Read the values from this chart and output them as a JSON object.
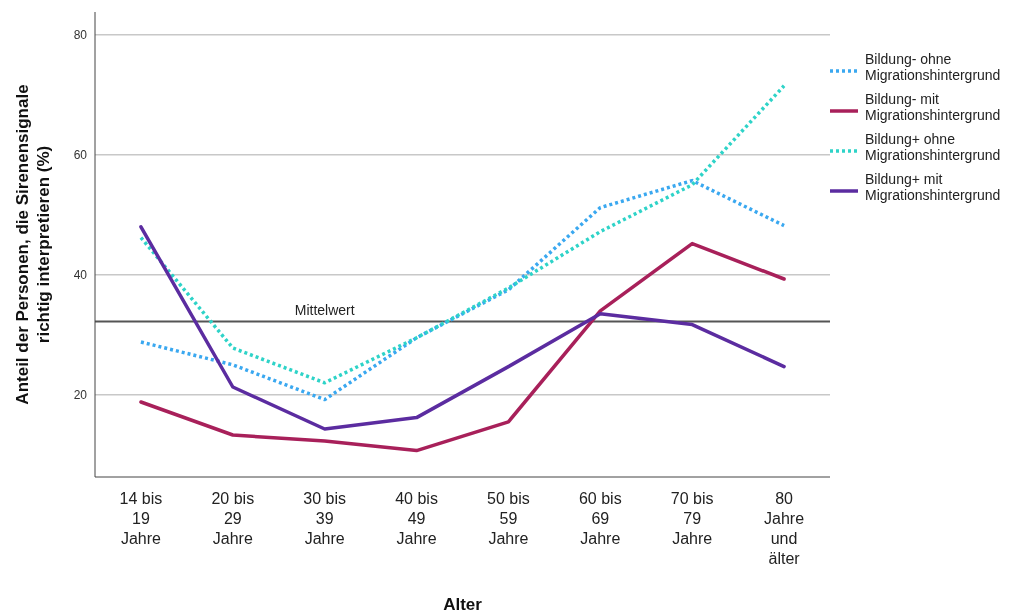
{
  "chart_data": {
    "type": "line",
    "xlabel": "Alter",
    "ylabel": "Anteil der Personen, die Sirenensignale richtig interpretieren (%)",
    "categories": [
      "14 bis 19 Jahre",
      "20 bis 29 Jahre",
      "30 bis 39 Jahre",
      "40 bis 49 Jahre",
      "50 bis 59 Jahre",
      "60 bis 69 Jahre",
      "70 bis 79 Jahre",
      "80 Jahre und älter"
    ],
    "series": [
      {
        "name": "Bildung- ohne Migrationshintergrund",
        "color": "#3aa8f0",
        "line_style": "dotted",
        "values": [
          28.8,
          25,
          19.2,
          29.5,
          37.5,
          51.2,
          55.7,
          48.2
        ]
      },
      {
        "name": "Bildung- mit Migrationshintergrund",
        "color": "#a8205a",
        "line_style": "solid",
        "values": [
          18.8,
          13.3,
          12.3,
          10.7,
          15.5,
          34,
          45.2,
          39.3
        ]
      },
      {
        "name": "Bildung+ ohne Migrationshintergrund",
        "color": "#2ed3c8",
        "line_style": "dotted",
        "values": [
          46.2,
          27.8,
          22,
          29.5,
          37.8,
          47.2,
          55,
          71.5
        ]
      },
      {
        "name": "Bildung+ mit Migrationshintergrund",
        "color": "#5b2ca0",
        "line_style": "solid",
        "values": [
          48,
          21.3,
          14.3,
          16.2,
          24.7,
          33.5,
          31.7,
          24.7
        ]
      }
    ],
    "ylim": [
      6.3,
      83.8
    ],
    "yticks": [
      20,
      40,
      60,
      80
    ],
    "grid": "y",
    "legend": "top right",
    "marker": "none",
    "ref_lines": [
      {
        "axis": "y",
        "value": 32.2,
        "label": "Mittelwert",
        "color": "#555555"
      }
    ]
  }
}
